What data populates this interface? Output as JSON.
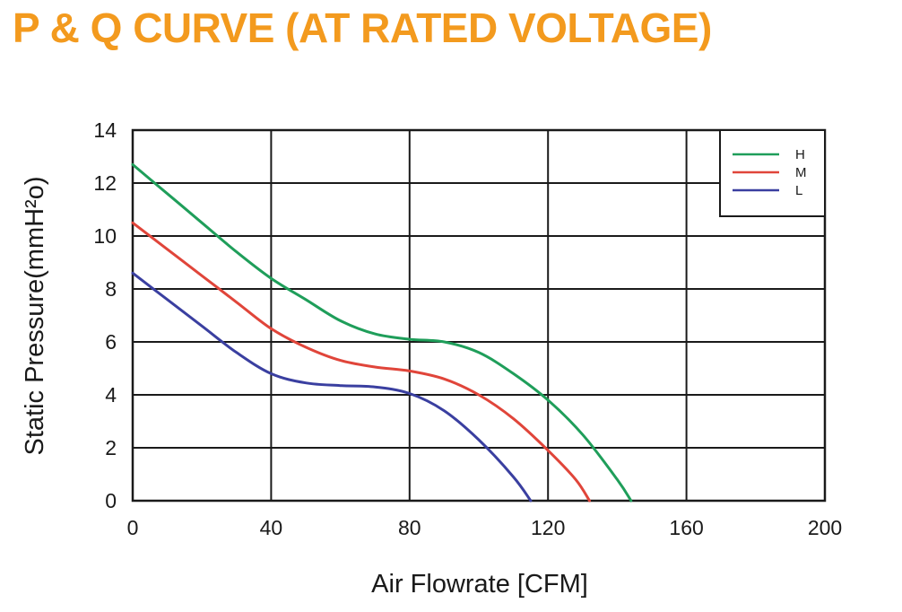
{
  "title": "P & Q CURVE (AT RATED VOLTAGE)",
  "colors": {
    "title": "#F39A1E",
    "grid": "#1a1a1a",
    "series_H": "#1F9E5A",
    "series_M": "#E0453A",
    "series_L": "#3A3FA0"
  },
  "chart_data": {
    "type": "line",
    "title": "P & Q CURVE (AT RATED VOLTAGE)",
    "xlabel": "Air  Flowrate   [CFM]",
    "ylabel": "Static Pressure(mmH²o)",
    "xlim": [
      0,
      200
    ],
    "ylim": [
      0,
      14
    ],
    "xticks": [
      0,
      40,
      80,
      120,
      160,
      200
    ],
    "yticks": [
      0,
      2,
      4,
      6,
      8,
      10,
      12,
      14
    ],
    "grid": true,
    "legend_position": "top-right",
    "series": [
      {
        "name": "H",
        "color": "#1F9E5A",
        "x": [
          0,
          10,
          20,
          30,
          40,
          50,
          60,
          70,
          80,
          90,
          100,
          110,
          120,
          130,
          140,
          144
        ],
        "y": [
          12.7,
          11.6,
          10.5,
          9.4,
          8.4,
          7.6,
          6.8,
          6.3,
          6.1,
          6.0,
          5.6,
          4.8,
          3.8,
          2.5,
          0.8,
          0
        ]
      },
      {
        "name": "M",
        "color": "#E0453A",
        "x": [
          0,
          10,
          20,
          30,
          40,
          50,
          60,
          70,
          80,
          90,
          100,
          110,
          120,
          128,
          132
        ],
        "y": [
          10.5,
          9.5,
          8.5,
          7.5,
          6.5,
          5.8,
          5.3,
          5.05,
          4.9,
          4.6,
          4.0,
          3.1,
          1.9,
          0.8,
          0
        ]
      },
      {
        "name": "L",
        "color": "#3A3FA0",
        "x": [
          0,
          10,
          20,
          30,
          40,
          50,
          60,
          70,
          80,
          90,
          100,
          110,
          115
        ],
        "y": [
          8.6,
          7.6,
          6.6,
          5.6,
          4.8,
          4.45,
          4.35,
          4.3,
          4.05,
          3.4,
          2.3,
          0.9,
          0
        ]
      }
    ]
  }
}
